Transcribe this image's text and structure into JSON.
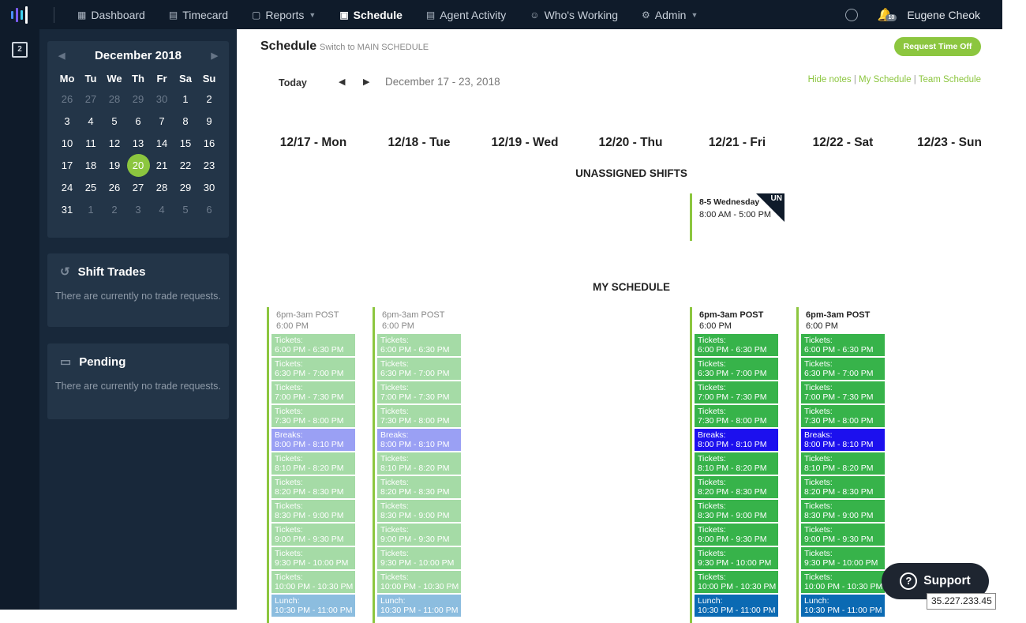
{
  "nav": {
    "items": [
      {
        "label": "Dashboard",
        "icon": "grid-icon",
        "glyph": "▦"
      },
      {
        "label": "Timecard",
        "icon": "timecard-icon",
        "glyph": "▤"
      },
      {
        "label": "Reports",
        "icon": "folder-icon",
        "glyph": "▢",
        "dropdown": true
      },
      {
        "label": "Schedule",
        "icon": "calendar-icon",
        "glyph": "▣",
        "active": true
      },
      {
        "label": "Agent Activity",
        "icon": "document-icon",
        "glyph": "▤"
      },
      {
        "label": "Who's Working",
        "icon": "users-icon",
        "glyph": "☺"
      },
      {
        "label": "Admin",
        "icon": "gear-icon",
        "glyph": "⚙",
        "dropdown": true
      }
    ],
    "notifications_count": "10",
    "username": "Eugene Cheok"
  },
  "sidebar": {
    "calendar": {
      "month": "December 2018",
      "weekdays": [
        "Mo",
        "Tu",
        "We",
        "Th",
        "Fr",
        "Sa",
        "Su"
      ],
      "days": [
        [
          "26",
          "27",
          "28",
          "29",
          "30",
          "1",
          "2"
        ],
        [
          "3",
          "4",
          "5",
          "6",
          "7",
          "8",
          "9"
        ],
        [
          "10",
          "11",
          "12",
          "13",
          "14",
          "15",
          "16"
        ],
        [
          "17",
          "18",
          "19",
          "20",
          "21",
          "22",
          "23"
        ],
        [
          "24",
          "25",
          "26",
          "27",
          "28",
          "29",
          "30"
        ],
        [
          "31",
          "1",
          "2",
          "3",
          "4",
          "5",
          "6"
        ]
      ],
      "selected": "20"
    },
    "trades": {
      "title": "Shift Trades",
      "empty": "There are currently no trade requests."
    },
    "pending": {
      "title": "Pending",
      "empty": "There are currently no trade requests."
    }
  },
  "schedule": {
    "title": "Schedule",
    "switch_label": "Switch to MAIN SCHEDULE",
    "request_button": "Request Time Off",
    "today_label": "Today",
    "range": "December 17 - 23, 2018",
    "links": [
      "Hide notes",
      "My Schedule",
      "Team Schedule"
    ],
    "days": [
      "12/17 - Mon",
      "12/18 - Tue",
      "12/19 - Wed",
      "12/20 - Thu",
      "12/21 - Fri",
      "12/22 - Sat",
      "12/23 - Sun"
    ],
    "unassigned_title": "UNASSIGNED SHIFTS",
    "unassigned_shift": {
      "name": "8-5 Wednesday",
      "time": "8:00 AM - 5:00 PM",
      "tag": "UN"
    },
    "my_title": "MY SCHEDULE",
    "shift_name": "6pm-3am POST",
    "shift_start": "6:00 PM",
    "blocks": [
      {
        "type": "tk",
        "label": "Tickets:",
        "time": "6:00 PM - 6:30 PM"
      },
      {
        "type": "tk",
        "label": "Tickets:",
        "time": "6:30 PM - 7:00 PM"
      },
      {
        "type": "tk",
        "label": "Tickets:",
        "time": "7:00 PM - 7:30 PM"
      },
      {
        "type": "tk",
        "label": "Tickets:",
        "time": "7:30 PM - 8:00 PM"
      },
      {
        "type": "br",
        "label": "Breaks:",
        "time": "8:00 PM - 8:10 PM"
      },
      {
        "type": "tk",
        "label": "Tickets:",
        "time": "8:10 PM - 8:20 PM"
      },
      {
        "type": "tk",
        "label": "Tickets:",
        "time": "8:20 PM - 8:30 PM"
      },
      {
        "type": "tk",
        "label": "Tickets:",
        "time": "8:30 PM - 9:00 PM"
      },
      {
        "type": "tk",
        "label": "Tickets:",
        "time": "9:00 PM - 9:30 PM"
      },
      {
        "type": "tk",
        "label": "Tickets:",
        "time": "9:30 PM - 10:00 PM"
      },
      {
        "type": "tk",
        "label": "Tickets:",
        "time": "10:00 PM - 10:30 PM"
      },
      {
        "type": "lu",
        "label": "Lunch:",
        "time": "10:30 PM - 11:00 PM"
      }
    ],
    "shift_columns": [
      {
        "day": "12/17 - Mon",
        "state": "past"
      },
      {
        "day": "12/18 - Tue",
        "state": "past"
      },
      {
        "day": "12/21 - Fri",
        "state": "cur"
      },
      {
        "day": "12/22 - Sat",
        "state": "cur"
      }
    ]
  },
  "support_label": "Support",
  "ip_address": "35.227.233.45",
  "colors": {
    "accent": "#8cc63f",
    "topbar": "#0f1b2a",
    "sidebar": "#18283a",
    "card": "#233548",
    "tickets_current": "#37b34a",
    "tickets_past": "#a5dba6",
    "breaks_current": "#1c10ee",
    "breaks_past": "#9aa0f4",
    "lunch_current": "#0b6ab3",
    "lunch_past": "#8cbddf"
  }
}
